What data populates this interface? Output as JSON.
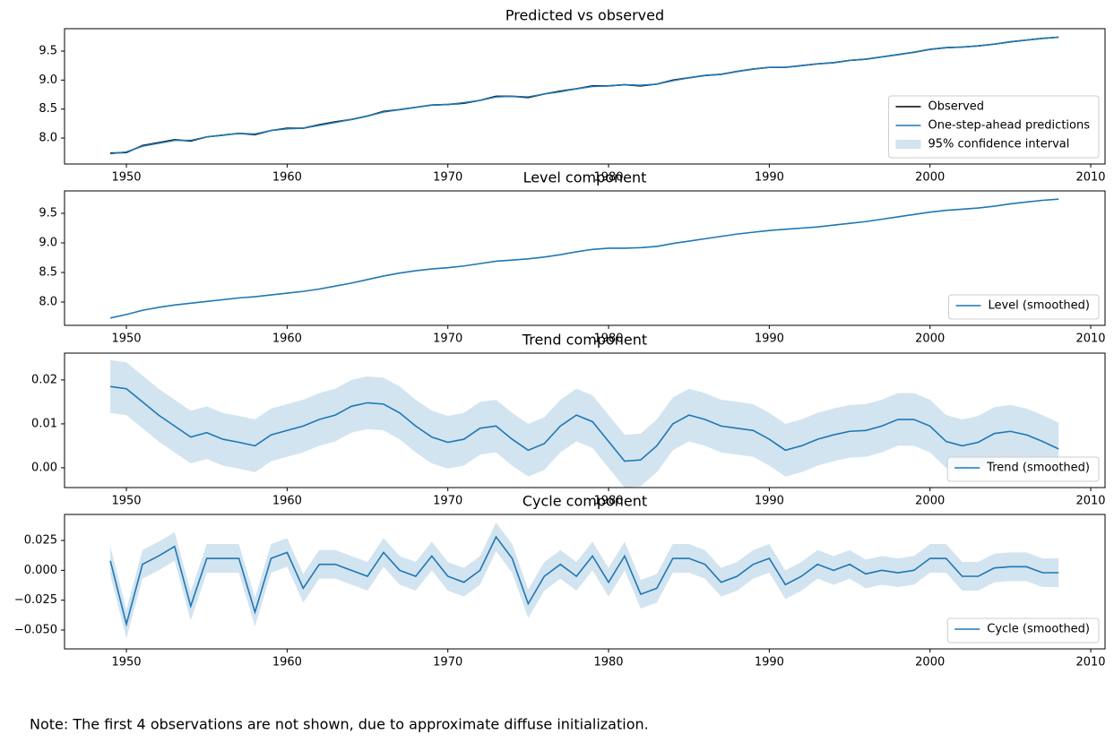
{
  "chart_data": [
    {
      "type": "line",
      "title": "Predicted vs observed",
      "legend": "lower right",
      "xlim": [
        1946.15,
        2010.89
      ],
      "xticks": [
        1950,
        1960,
        1970,
        1980,
        1990,
        2000,
        2010
      ],
      "ylim": [
        7.552,
        9.887
      ],
      "yticks": [
        {
          "value": 8,
          "label": "8.0"
        },
        8.5,
        {
          "value": 9,
          "label": "9.0"
        },
        9.5
      ],
      "x": [
        1949,
        1950,
        1951,
        1952,
        1953,
        1954,
        1955,
        1956,
        1957,
        1958,
        1959,
        1960,
        1961,
        1962,
        1963,
        1964,
        1965,
        1966,
        1967,
        1968,
        1969,
        1970,
        1971,
        1972,
        1973,
        1974,
        1975,
        1976,
        1977,
        1978,
        1979,
        1980,
        1981,
        1982,
        1983,
        1984,
        1985,
        1986,
        1987,
        1988,
        1989,
        1990,
        1991,
        1992,
        1993,
        1994,
        1995,
        1996,
        1997,
        1998,
        1999,
        2000,
        2001,
        2002,
        2003,
        2004,
        2005,
        2006,
        2007,
        2008
      ],
      "series": [
        {
          "name": "Observed",
          "color": "#000000",
          "values": [
            7.74,
            7.75,
            7.87,
            7.92,
            7.97,
            7.95,
            8.02,
            8.05,
            8.08,
            8.06,
            8.13,
            8.17,
            8.17,
            8.23,
            8.28,
            8.32,
            8.38,
            8.46,
            8.49,
            8.53,
            8.57,
            8.58,
            8.6,
            8.65,
            8.72,
            8.72,
            8.7,
            8.76,
            8.81,
            8.85,
            8.9,
            8.9,
            8.92,
            8.9,
            8.93,
            9.0,
            9.04,
            9.08,
            9.1,
            9.15,
            9.19,
            9.22,
            9.22,
            9.25,
            9.28,
            9.3,
            9.34,
            9.36,
            9.4,
            9.44,
            9.48,
            9.53,
            9.56,
            9.57,
            9.59,
            9.62,
            9.66,
            9.69,
            9.72,
            9.74
          ]
        },
        {
          "name": "One-step-ahead predictions",
          "color": "#1f77b4",
          "values": [
            7.73,
            7.76,
            7.86,
            7.91,
            7.96,
            7.96,
            8.02,
            8.05,
            8.08,
            8.07,
            8.13,
            8.16,
            8.17,
            8.22,
            8.27,
            8.32,
            8.38,
            8.45,
            8.49,
            8.53,
            8.57,
            8.58,
            8.61,
            8.65,
            8.71,
            8.72,
            8.71,
            8.76,
            8.8,
            8.85,
            8.89,
            8.9,
            8.92,
            8.91,
            8.93,
            8.99,
            9.04,
            9.08,
            9.1,
            9.15,
            9.19,
            9.22,
            9.22,
            9.25,
            9.28,
            9.3,
            9.34,
            9.36,
            9.4,
            9.44,
            9.48,
            9.53,
            9.56,
            9.57,
            9.59,
            9.62,
            9.66,
            9.69,
            9.72,
            9.74
          ]
        },
        {
          "name": "95% confidence interval",
          "color": "#1f77b4",
          "alpha": 0.2,
          "lower": [
            7.72,
            7.75,
            7.85,
            7.9,
            7.95,
            7.95,
            8.01,
            8.04,
            8.07,
            8.06,
            8.12,
            8.15,
            8.16,
            8.21,
            8.26,
            8.31,
            8.37,
            8.44,
            8.48,
            8.52,
            8.56,
            8.57,
            8.6,
            8.64,
            8.7,
            8.71,
            8.7,
            8.75,
            8.79,
            8.84,
            8.88,
            8.89,
            8.91,
            8.9,
            8.92,
            8.98,
            9.03,
            9.07,
            9.09,
            9.14,
            9.18,
            9.21,
            9.21,
            9.24,
            9.27,
            9.29,
            9.33,
            9.35,
            9.39,
            9.43,
            9.47,
            9.52,
            9.55,
            9.56,
            9.58,
            9.61,
            9.65,
            9.68,
            9.71,
            9.73
          ],
          "upper": [
            7.74,
            7.77,
            7.87,
            7.92,
            7.97,
            7.97,
            8.03,
            8.06,
            8.09,
            8.08,
            8.14,
            8.17,
            8.18,
            8.23,
            8.28,
            8.33,
            8.39,
            8.46,
            8.5,
            8.54,
            8.58,
            8.59,
            8.62,
            8.66,
            8.72,
            8.73,
            8.72,
            8.77,
            8.81,
            8.86,
            8.9,
            8.91,
            8.93,
            8.92,
            8.94,
            9.0,
            9.05,
            9.09,
            9.11,
            9.16,
            9.2,
            9.23,
            9.23,
            9.26,
            9.29,
            9.31,
            9.35,
            9.37,
            9.41,
            9.45,
            9.49,
            9.54,
            9.57,
            9.58,
            9.6,
            9.63,
            9.67,
            9.7,
            9.73,
            9.75
          ]
        }
      ]
    },
    {
      "type": "line",
      "title": "Level component",
      "legend": "lower right",
      "xlim": [
        1946.15,
        2010.89
      ],
      "xticks": [
        1950,
        1960,
        1970,
        1980,
        1990,
        2000,
        2010
      ],
      "ylim": [
        7.606,
        9.879
      ],
      "yticks": [
        {
          "value": 8,
          "label": "8.0"
        },
        8.5,
        {
          "value": 9,
          "label": "9.0"
        },
        9.5
      ],
      "x": [
        1949,
        1950,
        1951,
        1952,
        1953,
        1954,
        1955,
        1956,
        1957,
        1958,
        1959,
        1960,
        1961,
        1962,
        1963,
        1964,
        1965,
        1966,
        1967,
        1968,
        1969,
        1970,
        1971,
        1972,
        1973,
        1974,
        1975,
        1976,
        1977,
        1978,
        1979,
        1980,
        1981,
        1982,
        1983,
        1984,
        1985,
        1986,
        1987,
        1988,
        1989,
        1990,
        1991,
        1992,
        1993,
        1994,
        1995,
        1996,
        1997,
        1998,
        1999,
        2000,
        2001,
        2002,
        2003,
        2004,
        2005,
        2006,
        2007,
        2008
      ],
      "series": [
        {
          "name": "Level (smoothed)",
          "color": "#1f77b4",
          "values": [
            7.73,
            7.79,
            7.86,
            7.91,
            7.95,
            7.98,
            8.01,
            8.04,
            8.07,
            8.09,
            8.12,
            8.15,
            8.18,
            8.22,
            8.27,
            8.32,
            8.38,
            8.44,
            8.49,
            8.53,
            8.56,
            8.58,
            8.61,
            8.65,
            8.69,
            8.71,
            8.73,
            8.76,
            8.8,
            8.85,
            8.89,
            8.91,
            8.91,
            8.92,
            8.94,
            8.99,
            9.03,
            9.07,
            9.11,
            9.15,
            9.18,
            9.21,
            9.23,
            9.25,
            9.27,
            9.3,
            9.33,
            9.36,
            9.4,
            9.44,
            9.48,
            9.52,
            9.55,
            9.57,
            9.59,
            9.62,
            9.66,
            9.69,
            9.72,
            9.74
          ]
        }
      ]
    },
    {
      "type": "line",
      "title": "Trend component",
      "legend": "lower right",
      "xlim": [
        1946.15,
        2010.89
      ],
      "xticks": [
        1950,
        1960,
        1970,
        1980,
        1990,
        2000,
        2010
      ],
      "ylim": [
        -0.0045,
        0.0261
      ],
      "yticks": [
        {
          "value": 0,
          "label": "0.00"
        },
        0.01,
        0.02
      ],
      "x": [
        1949,
        1950,
        1951,
        1952,
        1953,
        1954,
        1955,
        1956,
        1957,
        1958,
        1959,
        1960,
        1961,
        1962,
        1963,
        1964,
        1965,
        1966,
        1967,
        1968,
        1969,
        1970,
        1971,
        1972,
        1973,
        1974,
        1975,
        1976,
        1977,
        1978,
        1979,
        1980,
        1981,
        1982,
        1983,
        1984,
        1985,
        1986,
        1987,
        1988,
        1989,
        1990,
        1991,
        1992,
        1993,
        1994,
        1995,
        1996,
        1997,
        1998,
        1999,
        2000,
        2001,
        2002,
        2003,
        2004,
        2005,
        2006,
        2007,
        2008
      ],
      "series": [
        {
          "name": "Trend (smoothed)",
          "color": "#1f77b4",
          "values": [
            0.0185,
            0.018,
            0.015,
            0.012,
            0.0095,
            0.007,
            0.008,
            0.0065,
            0.0058,
            0.005,
            0.0075,
            0.0085,
            0.0095,
            0.011,
            0.012,
            0.014,
            0.0148,
            0.0145,
            0.0125,
            0.0095,
            0.007,
            0.0058,
            0.0065,
            0.009,
            0.0095,
            0.0065,
            0.004,
            0.0055,
            0.0095,
            0.012,
            0.0105,
            0.006,
            0.0015,
            0.0018,
            0.005,
            0.01,
            0.012,
            0.011,
            0.0095,
            0.009,
            0.0085,
            0.0065,
            0.004,
            0.005,
            0.0065,
            0.0075,
            0.0083,
            0.0085,
            0.0095,
            0.011,
            0.011,
            0.0095,
            0.006,
            0.005,
            0.0058,
            0.0078,
            0.0083,
            0.0075,
            0.006,
            0.0043
          ]
        },
        {
          "color": "#1f77b4",
          "alpha": 0.2,
          "lower": [
            0.0125,
            0.012,
            0.009,
            0.006,
            0.0035,
            0.001,
            0.002,
            0.0005,
            -0.0002,
            -0.001,
            0.0015,
            0.0025,
            0.0035,
            0.005,
            0.006,
            0.008,
            0.0088,
            0.0085,
            0.0065,
            0.0035,
            0.001,
            -0.0002,
            0.0005,
            0.003,
            0.0035,
            0.0005,
            -0.002,
            -0.0005,
            0.0035,
            0.006,
            0.0045,
            0,
            -0.0045,
            -0.0042,
            -0.001,
            0.004,
            0.006,
            0.005,
            0.0035,
            0.003,
            0.0025,
            0.0005,
            -0.002,
            -0.001,
            0.0005,
            0.0015,
            0.0023,
            0.0025,
            0.0035,
            0.005,
            0.005,
            0.0035,
            0,
            -0.001,
            -0.0002,
            0.0018,
            0.0023,
            0.0015,
            0,
            -0.0017
          ],
          "upper": [
            0.0245,
            0.024,
            0.021,
            0.018,
            0.0155,
            0.013,
            0.014,
            0.0125,
            0.0118,
            0.011,
            0.0135,
            0.0145,
            0.0155,
            0.017,
            0.018,
            0.02,
            0.0208,
            0.0205,
            0.0185,
            0.0155,
            0.013,
            0.0118,
            0.0125,
            0.015,
            0.0155,
            0.0125,
            0.01,
            0.0115,
            0.0155,
            0.018,
            0.0165,
            0.012,
            0.0075,
            0.0078,
            0.011,
            0.016,
            0.018,
            0.017,
            0.0155,
            0.015,
            0.0145,
            0.0125,
            0.01,
            0.011,
            0.0125,
            0.0135,
            0.0143,
            0.0145,
            0.0155,
            0.017,
            0.017,
            0.0155,
            0.012,
            0.011,
            0.0118,
            0.0138,
            0.0143,
            0.0135,
            0.012,
            0.0103
          ]
        }
      ]
    },
    {
      "type": "line",
      "title": "Cycle component",
      "legend": "lower right",
      "xlim": [
        1946.15,
        2010.89
      ],
      "xticks": [
        1950,
        1960,
        1970,
        1980,
        1990,
        2000,
        2010
      ],
      "ylim": [
        -0.0658,
        0.0468
      ],
      "yticks": [
        {
          "value": -0.05,
          "label": "−0.050"
        },
        {
          "value": -0.025,
          "label": "−0.025"
        },
        {
          "value": 0,
          "label": "0.000"
        },
        0.025
      ],
      "x": [
        1949,
        1950,
        1951,
        1952,
        1953,
        1954,
        1955,
        1956,
        1957,
        1958,
        1959,
        1960,
        1961,
        1962,
        1963,
        1964,
        1965,
        1966,
        1967,
        1968,
        1969,
        1970,
        1971,
        1972,
        1973,
        1974,
        1975,
        1976,
        1977,
        1978,
        1979,
        1980,
        1981,
        1982,
        1983,
        1984,
        1985,
        1986,
        1987,
        1988,
        1989,
        1990,
        1991,
        1992,
        1993,
        1994,
        1995,
        1996,
        1997,
        1998,
        1999,
        2000,
        2001,
        2002,
        2003,
        2004,
        2005,
        2006,
        2007,
        2008
      ],
      "series": [
        {
          "name": "Cycle (smoothed)",
          "color": "#1f77b4",
          "values": [
            0.008,
            -0.045,
            0.005,
            0.012,
            0.02,
            -0.03,
            0.01,
            0.01,
            0.01,
            -0.035,
            0.01,
            0.015,
            -0.015,
            0.005,
            0.005,
            0,
            -0.005,
            0.015,
            0,
            -0.005,
            0.012,
            -0.005,
            -0.01,
            0,
            0.028,
            0.01,
            -0.028,
            -0.005,
            0.005,
            -0.005,
            0.012,
            -0.01,
            0.012,
            -0.02,
            -0.015,
            0.01,
            0.01,
            0.005,
            -0.01,
            -0.005,
            0.005,
            0.01,
            -0.012,
            -0.005,
            0.005,
            0,
            0.005,
            -0.003,
            0,
            -0.002,
            0,
            0.01,
            0.01,
            -0.005,
            -0.005,
            0.002,
            0.003,
            0.003,
            -0.002,
            -0.002
          ]
        },
        {
          "color": "#1f77b4",
          "alpha": 0.2,
          "lower": [
            -0.004,
            -0.057,
            -0.007,
            0,
            0.008,
            -0.042,
            -0.002,
            -0.002,
            -0.002,
            -0.047,
            -0.002,
            0.003,
            -0.027,
            -0.007,
            -0.007,
            -0.012,
            -0.017,
            0.003,
            -0.012,
            -0.017,
            0,
            -0.017,
            -0.022,
            -0.012,
            0.016,
            -0.002,
            -0.04,
            -0.017,
            -0.007,
            -0.017,
            0,
            -0.022,
            0,
            -0.032,
            -0.027,
            -0.002,
            -0.002,
            -0.007,
            -0.022,
            -0.017,
            -0.007,
            -0.002,
            -0.024,
            -0.017,
            -0.007,
            -0.012,
            -0.007,
            -0.015,
            -0.012,
            -0.014,
            -0.012,
            -0.002,
            -0.002,
            -0.017,
            -0.017,
            -0.01,
            -0.009,
            -0.009,
            -0.014,
            -0.014
          ],
          "upper": [
            0.02,
            -0.033,
            0.017,
            0.024,
            0.032,
            -0.018,
            0.022,
            0.022,
            0.022,
            -0.023,
            0.022,
            0.027,
            -0.003,
            0.017,
            0.017,
            0.012,
            0.007,
            0.027,
            0.012,
            0.007,
            0.024,
            0.007,
            0.002,
            0.012,
            0.04,
            0.022,
            -0.016,
            0.007,
            0.017,
            0.007,
            0.024,
            0.002,
            0.024,
            -0.008,
            -0.003,
            0.022,
            0.022,
            0.017,
            0.002,
            0.007,
            0.017,
            0.022,
            0,
            0.007,
            0.017,
            0.012,
            0.017,
            0.009,
            0.012,
            0.01,
            0.012,
            0.022,
            0.022,
            0.007,
            0.007,
            0.014,
            0.015,
            0.015,
            0.01,
            0.01
          ]
        }
      ]
    }
  ],
  "note": "Note: The first 4 observations are not shown, due to approximate diffuse initialization."
}
